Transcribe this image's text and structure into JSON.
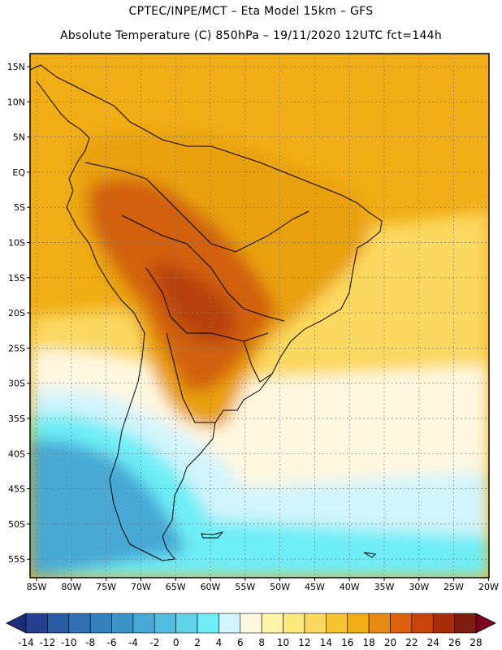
{
  "header": {
    "line1": "CPTEC/INPE/MCT –  Eta Model 15km – GFS",
    "line2": "Absolute Temperature (C) 850hPa – 19/11/2020 12UTC fct=144h"
  },
  "axes": {
    "lat_labels": [
      "15N",
      "10N",
      "5N",
      "EQ",
      "5S",
      "10S",
      "15S",
      "20S",
      "25S",
      "30S",
      "35S",
      "40S",
      "45S",
      "50S",
      "55S"
    ],
    "lon_labels": [
      "85W",
      "80W",
      "75W",
      "70W",
      "65W",
      "60W",
      "55W",
      "50W",
      "45W",
      "40W",
      "35W",
      "30W",
      "25W",
      "20W"
    ]
  },
  "colorbar": {
    "labels": [
      "-14",
      "-12",
      "-10",
      "-8",
      "-6",
      "-4",
      "-2",
      "0",
      "2",
      "4",
      "6",
      "8",
      "10",
      "12",
      "14",
      "16",
      "18",
      "20",
      "22",
      "24",
      "26",
      "28"
    ],
    "colors": [
      "#25408f",
      "#2a5ca6",
      "#2f6fb2",
      "#3581bd",
      "#3b93c8",
      "#46a8d4",
      "#53bfe0",
      "#5ed3ea",
      "#6eeef6",
      "#d2f4fc",
      "#fff8e0",
      "#fff5a8",
      "#fde97b",
      "#fbd85f",
      "#f4c431",
      "#f0ad15",
      "#e68a12",
      "#de620e",
      "#c9440b",
      "#a82e0a",
      "#7d1d10"
    ],
    "left_arrow_color": "#1e2d7a",
    "right_arrow_color": "#82001f"
  },
  "map_colors": {
    "ocean_north": "#f0ad15",
    "continent_base": "#e8a010",
    "warm_core": "#d2600e",
    "hot_core": "#b8420b",
    "cool_band": "#fbd85f",
    "pale_band": "#fff8e0",
    "cyan_band": "#d2f4fc",
    "blue_band": "#6eeef6",
    "deep_blue": "#46a8d4"
  }
}
